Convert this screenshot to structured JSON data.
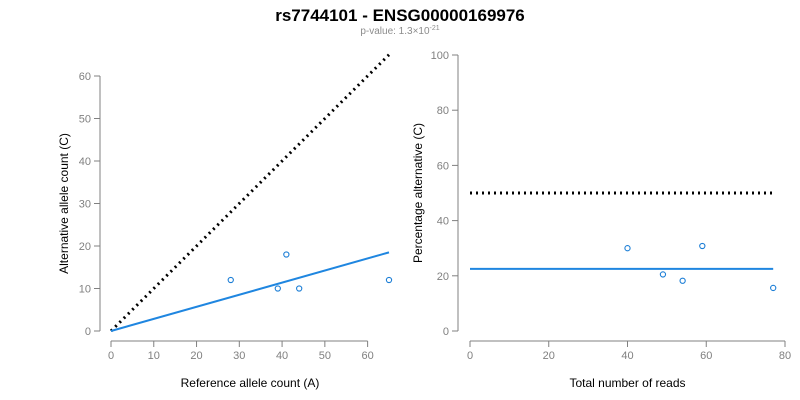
{
  "figure": {
    "title": "rs7744101 - ENSG00000169976",
    "subtitle_prefix": "p-value: 1.3×10",
    "subtitle_exponent": "-21"
  },
  "colors": {
    "points": "#1c7ed6",
    "fit": "#1f86e0",
    "reference": "#000000"
  },
  "chart_data": [
    {
      "type": "scatter",
      "xlabel": "Reference allele count (A)",
      "ylabel": "Alternative allele count (C)",
      "xlim": [
        0,
        65
      ],
      "ylim": [
        0,
        60
      ],
      "xticks": [
        0,
        10,
        20,
        30,
        40,
        50,
        60
      ],
      "yticks": [
        0,
        10,
        20,
        30,
        40,
        50,
        60
      ],
      "points": [
        {
          "x": 28,
          "y": 12
        },
        {
          "x": 39,
          "y": 10
        },
        {
          "x": 41,
          "y": 18
        },
        {
          "x": 44,
          "y": 10
        },
        {
          "x": 65,
          "y": 12
        }
      ],
      "fit_line": {
        "x": [
          0,
          65
        ],
        "y": [
          0,
          18.5
        ]
      },
      "reference_line": {
        "x": [
          0,
          65
        ],
        "y": [
          0,
          65
        ]
      },
      "grid": false
    },
    {
      "type": "scatter",
      "xlabel": "Total number of reads",
      "ylabel": "Percentage alternative (C)",
      "xlim": [
        0,
        80
      ],
      "ylim": [
        0,
        100
      ],
      "xticks": [
        0,
        20,
        40,
        60,
        80
      ],
      "yticks": [
        0,
        20,
        40,
        60,
        80,
        100
      ],
      "points": [
        {
          "x": 40,
          "y": 30
        },
        {
          "x": 49,
          "y": 20.5
        },
        {
          "x": 54,
          "y": 18.2
        },
        {
          "x": 59,
          "y": 30.8
        },
        {
          "x": 77,
          "y": 15.6
        }
      ],
      "fit_line": {
        "x": [
          0,
          77
        ],
        "y": [
          22.5,
          22.5
        ]
      },
      "reference_line": {
        "x": [
          0,
          77
        ],
        "y": [
          50,
          50
        ]
      },
      "grid": false
    }
  ]
}
